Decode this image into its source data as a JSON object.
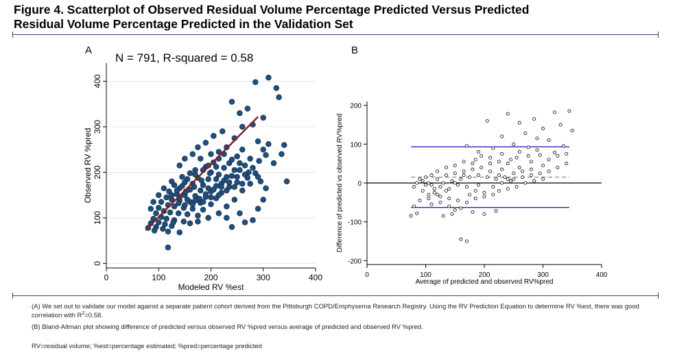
{
  "figure": {
    "title_line1": "Figure 4. Scatterplot of Observed Residual Volume Percentage Predicted Versus Predicted",
    "title_line2": "Residual Volume Percentage Predicted in the Validation Set"
  },
  "captions": {
    "a_part1": "(A) We set out to validate our model against a separate patient cohort derived from the Pittsburgh COPD/Emphysema Research Registry. Using the RV Prediction Equation to determine RV %est, there was good",
    "a_part2_prefix": "correlation with R",
    "a_part2_sup": "2",
    "a_part2_suffix": "=0.58.",
    "b": "(B) Bland-Altman plot showing difference of predicted versus observed RV %pred versus average of predicted and observed RV %pred.",
    "abbrev": "RV=residual volume; %est=percentage estimated; %pred=percentage predicted"
  },
  "colors": {
    "title_rule": "#2f3f7a",
    "scatter_fill": "#1f4f7d",
    "scatter_edge": "#0f2a46",
    "fit_line": "#8c1c1c",
    "limit_lines": "#1f1fcc",
    "mean_line": "#9a9a9a",
    "zero_line": "#000000",
    "grid": "#e8e8e8"
  },
  "chart_data": [
    {
      "panel_label": "A",
      "type": "scatter",
      "annotation": "N = 791, R-squared = 0.58",
      "xlabel": "Modeled RV %est",
      "ylabel": "Observed RV %pred",
      "xlim": [
        0,
        400
      ],
      "ylim": [
        -10,
        440
      ],
      "xticks": [
        0,
        100,
        200,
        300,
        400
      ],
      "yticks": [
        0,
        100,
        200,
        300,
        400
      ],
      "grid": true,
      "n": 791,
      "fit_line": {
        "x": [
          75,
          290
        ],
        "y": [
          73,
          322
        ]
      },
      "points": [
        [
          310,
          408
        ],
        [
          325,
          385
        ],
        [
          330,
          365
        ],
        [
          285,
          398
        ],
        [
          240,
          355
        ],
        [
          255,
          330
        ],
        [
          270,
          340
        ],
        [
          260,
          300
        ],
        [
          280,
          305
        ],
        [
          300,
          320
        ],
        [
          222,
          290
        ],
        [
          245,
          275
        ],
        [
          290,
          268
        ],
        [
          310,
          262
        ],
        [
          230,
          255
        ],
        [
          260,
          250
        ],
        [
          215,
          245
        ],
        [
          200,
          240
        ],
        [
          250,
          235
        ],
        [
          275,
          230
        ],
        [
          180,
          230
        ],
        [
          205,
          222
        ],
        [
          235,
          220
        ],
        [
          265,
          215
        ],
        [
          190,
          212
        ],
        [
          225,
          210
        ],
        [
          255,
          205
        ],
        [
          285,
          198
        ],
        [
          170,
          205
        ],
        [
          160,
          198
        ],
        [
          200,
          200
        ],
        [
          215,
          195
        ],
        [
          240,
          192
        ],
        [
          270,
          188
        ],
        [
          145,
          190
        ],
        [
          175,
          188
        ],
        [
          195,
          185
        ],
        [
          225,
          182
        ],
        [
          250,
          178
        ],
        [
          150,
          178
        ],
        [
          165,
          175
        ],
        [
          185,
          172
        ],
        [
          210,
          170
        ],
        [
          235,
          168
        ],
        [
          130,
          172
        ],
        [
          140,
          165
        ],
        [
          160,
          162
        ],
        [
          180,
          160
        ],
        [
          200,
          158
        ],
        [
          220,
          155
        ],
        [
          120,
          158
        ],
        [
          135,
          152
        ],
        [
          150,
          150
        ],
        [
          170,
          148
        ],
        [
          190,
          146
        ],
        [
          210,
          143
        ],
        [
          115,
          145
        ],
        [
          125,
          140
        ],
        [
          140,
          138
        ],
        [
          160,
          135
        ],
        [
          180,
          133
        ],
        [
          200,
          130
        ],
        [
          105,
          135
        ],
        [
          118,
          128
        ],
        [
          130,
          125
        ],
        [
          148,
          122
        ],
        [
          165,
          120
        ],
        [
          185,
          118
        ],
        [
          100,
          122
        ],
        [
          110,
          115
        ],
        [
          122,
          112
        ],
        [
          138,
          110
        ],
        [
          155,
          108
        ],
        [
          175,
          105
        ],
        [
          95,
          110
        ],
        [
          105,
          102
        ],
        [
          115,
          98
        ],
        [
          130,
          95
        ],
        [
          148,
          92
        ],
        [
          90,
          98
        ],
        [
          100,
          90
        ],
        [
          112,
          86
        ],
        [
          125,
          82
        ],
        [
          85,
          88
        ],
        [
          95,
          80
        ],
        [
          108,
          76
        ],
        [
          80,
          78
        ],
        [
          92,
          72
        ],
        [
          118,
          70
        ],
        [
          140,
          68
        ],
        [
          118,
          35
        ],
        [
          240,
          80
        ],
        [
          230,
          100
        ],
        [
          255,
          110
        ],
        [
          280,
          95
        ],
        [
          265,
          90
        ],
        [
          290,
          120
        ],
        [
          300,
          140
        ],
        [
          305,
          165
        ],
        [
          295,
          180
        ],
        [
          320,
          220
        ],
        [
          335,
          240
        ],
        [
          340,
          260
        ],
        [
          345,
          180
        ],
        [
          150,
          230
        ],
        [
          140,
          215
        ],
        [
          165,
          240
        ],
        [
          190,
          265
        ],
        [
          205,
          280
        ],
        [
          175,
          255
        ],
        [
          125,
          180
        ],
        [
          110,
          165
        ],
        [
          100,
          150
        ],
        [
          90,
          135
        ],
        [
          85,
          120
        ],
        [
          128,
          90
        ],
        [
          160,
          88
        ],
        [
          175,
          92
        ],
        [
          195,
          100
        ],
        [
          215,
          110
        ],
        [
          230,
          125
        ],
        [
          245,
          140
        ],
        [
          260,
          160
        ],
        [
          275,
          175
        ],
        [
          290,
          190
        ],
        [
          210,
          185
        ],
        [
          220,
          175
        ],
        [
          195,
          165
        ],
        [
          230,
          190
        ],
        [
          245,
          205
        ],
        [
          215,
          230
        ],
        [
          225,
          240
        ],
        [
          195,
          215
        ],
        [
          185,
          205
        ],
        [
          170,
          195
        ],
        [
          155,
          185
        ],
        [
          145,
          170
        ],
        [
          135,
          160
        ],
        [
          125,
          150
        ],
        [
          140,
          145
        ],
        [
          155,
          140
        ],
        [
          170,
          138
        ],
        [
          185,
          135
        ],
        [
          200,
          145
        ],
        [
          215,
          150
        ],
        [
          230,
          160
        ],
        [
          245,
          168
        ],
        [
          260,
          175
        ],
        [
          272,
          200
        ],
        [
          255,
          220
        ],
        [
          240,
          228
        ],
        [
          210,
          212
        ],
        [
          198,
          198
        ],
        [
          182,
          182
        ],
        [
          168,
          168
        ],
        [
          152,
          158
        ],
        [
          138,
          132
        ],
        [
          150,
          128
        ],
        [
          165,
          130
        ],
        [
          178,
          142
        ],
        [
          190,
          152
        ],
        [
          205,
          162
        ],
        [
          220,
          168
        ],
        [
          235,
          178
        ],
        [
          250,
          190
        ],
        [
          265,
          195
        ],
        [
          280,
          210
        ],
        [
          292,
          225
        ],
        [
          305,
          238
        ],
        [
          300,
          250
        ]
      ]
    },
    {
      "panel_label": "B",
      "type": "scatter",
      "xlabel": "Average of predicted and observed RV%pred",
      "ylabel": "Difference of predicted vs observed RV%pred",
      "xlim": [
        0,
        400
      ],
      "ylim": [
        -210,
        210
      ],
      "xticks": [
        0,
        100,
        200,
        300,
        400
      ],
      "yticks": [
        -200,
        -100,
        0,
        100,
        200
      ],
      "grid": false,
      "reference_lines": {
        "zero": 0,
        "mean": 15,
        "upper_limit": 93,
        "lower_limit": -63
      },
      "points": [
        [
          320,
          182
        ],
        [
          345,
          185
        ],
        [
          350,
          135
        ],
        [
          240,
          178
        ],
        [
          260,
          155
        ],
        [
          285,
          165
        ],
        [
          300,
          140
        ],
        [
          330,
          150
        ],
        [
          270,
          128
        ],
        [
          290,
          115
        ],
        [
          310,
          110
        ],
        [
          335,
          95
        ],
        [
          230,
          120
        ],
        [
          250,
          100
        ],
        [
          275,
          92
        ],
        [
          260,
          80
        ],
        [
          295,
          72
        ],
        [
          320,
          78
        ],
        [
          340,
          75
        ],
        [
          215,
          90
        ],
        [
          205,
          160
        ],
        [
          190,
          80
        ],
        [
          170,
          95
        ],
        [
          230,
          75
        ],
        [
          245,
          60
        ],
        [
          280,
          55
        ],
        [
          300,
          45
        ],
        [
          260,
          40
        ],
        [
          230,
          35
        ],
        [
          210,
          50
        ],
        [
          185,
          60
        ],
        [
          165,
          55
        ],
        [
          150,
          45
        ],
        [
          135,
          40
        ],
        [
          120,
          30
        ],
        [
          110,
          20
        ],
        [
          100,
          15
        ],
        [
          90,
          10
        ],
        [
          85,
          0
        ],
        [
          80,
          -10
        ],
        [
          95,
          -20
        ],
        [
          105,
          -30
        ],
        [
          115,
          -25
        ],
        [
          125,
          -35
        ],
        [
          140,
          -40
        ],
        [
          155,
          -45
        ],
        [
          170,
          -50
        ],
        [
          185,
          -40
        ],
        [
          200,
          -35
        ],
        [
          215,
          -30
        ],
        [
          225,
          -20
        ],
        [
          240,
          -15
        ],
        [
          255,
          -10
        ],
        [
          270,
          0
        ],
        [
          285,
          5
        ],
        [
          300,
          10
        ],
        [
          140,
          -60
        ],
        [
          150,
          -70
        ],
        [
          160,
          -65
        ],
        [
          130,
          -85
        ],
        [
          145,
          -80
        ],
        [
          160,
          -145
        ],
        [
          170,
          -150
        ],
        [
          180,
          -75
        ],
        [
          200,
          -80
        ],
        [
          220,
          -72
        ],
        [
          120,
          10
        ],
        [
          135,
          20
        ],
        [
          150,
          25
        ],
        [
          165,
          30
        ],
        [
          180,
          35
        ],
        [
          195,
          40
        ],
        [
          210,
          30
        ],
        [
          225,
          20
        ],
        [
          240,
          10
        ],
        [
          250,
          25
        ],
        [
          265,
          30
        ],
        [
          280,
          35
        ],
        [
          110,
          -5
        ],
        [
          125,
          -10
        ],
        [
          140,
          -15
        ],
        [
          155,
          -5
        ],
        [
          170,
          -10
        ],
        [
          185,
          -20
        ],
        [
          200,
          -25
        ],
        [
          215,
          -10
        ],
        [
          230,
          0
        ],
        [
          245,
          5
        ],
        [
          100,
          -5
        ],
        [
          95,
          5
        ],
        [
          105,
          0
        ],
        [
          115,
          -15
        ],
        [
          130,
          0
        ],
        [
          145,
          5
        ],
        [
          160,
          10
        ],
        [
          175,
          15
        ],
        [
          190,
          20
        ],
        [
          205,
          15
        ],
        [
          220,
          10
        ],
        [
          235,
          15
        ],
        [
          250,
          10
        ],
        [
          265,
          15
        ],
        [
          280,
          20
        ],
        [
          295,
          25
        ],
        [
          310,
          30
        ],
        [
          325,
          40
        ],
        [
          340,
          50
        ],
        [
          310,
          60
        ],
        [
          325,
          70
        ],
        [
          290,
          85
        ],
        [
          275,
          70
        ],
        [
          255,
          65
        ],
        [
          240,
          50
        ],
        [
          225,
          55
        ],
        [
          210,
          65
        ],
        [
          195,
          70
        ],
        [
          180,
          50
        ],
        [
          165,
          20
        ],
        [
          150,
          0
        ],
        [
          135,
          -20
        ],
        [
          120,
          -30
        ],
        [
          105,
          -40
        ],
        [
          90,
          -45
        ],
        [
          80,
          -60
        ],
        [
          75,
          -85
        ],
        [
          85,
          -78
        ],
        [
          110,
          -55
        ],
        [
          125,
          -50
        ],
        [
          175,
          -30
        ],
        [
          190,
          -5
        ]
      ]
    }
  ]
}
